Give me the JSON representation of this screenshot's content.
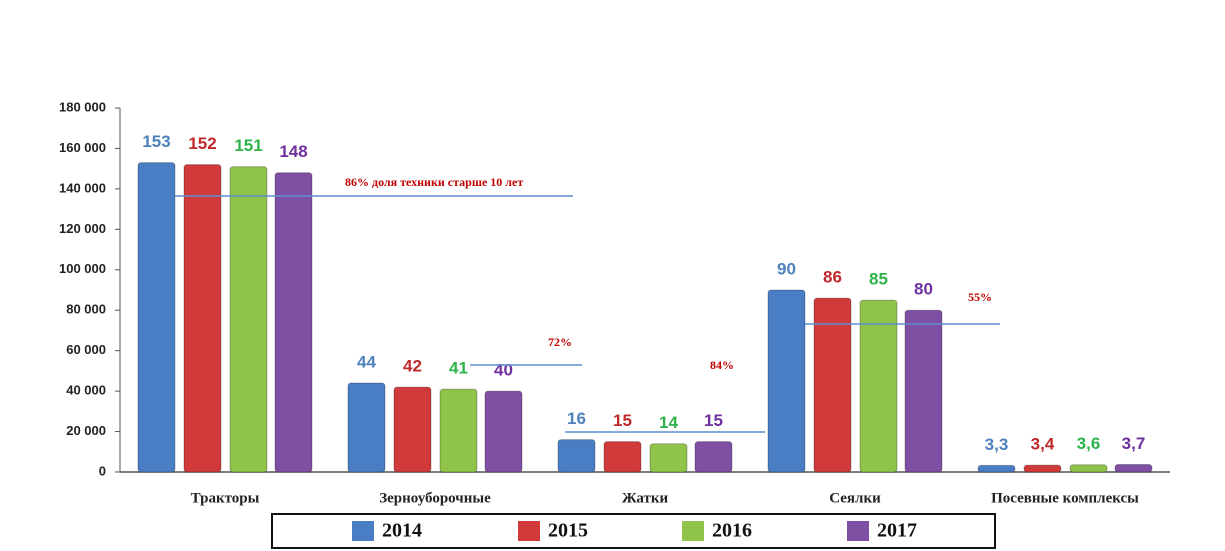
{
  "chart_data": {
    "type": "bar",
    "categories": [
      "Тракторы",
      "Зерноуборочные",
      "Жатки",
      "Сеялки",
      "Посевные комплексы"
    ],
    "series": [
      {
        "name": "2014",
        "color": "#4a7ec4",
        "label_color": "#4f81bd",
        "values": [
          153000,
          44000,
          16000,
          90000,
          3300
        ],
        "value_labels": [
          "153",
          "44",
          "16",
          "90",
          "3,3"
        ]
      },
      {
        "name": "2015",
        "color": "#d03a3a",
        "label_color": "#c0292b",
        "values": [
          152000,
          42000,
          15000,
          86000,
          3400
        ],
        "value_labels": [
          "152",
          "42",
          "15",
          "86",
          "3,4"
        ]
      },
      {
        "name": "2016",
        "color": "#8fc34a",
        "label_color": "#2db34a",
        "values": [
          151000,
          41000,
          14000,
          85000,
          3600
        ],
        "value_labels": [
          "151",
          "41",
          "14",
          "85",
          "3,6"
        ]
      },
      {
        "name": "2017",
        "color": "#7e4fa3",
        "label_color": "#7030a0",
        "values": [
          148000,
          40000,
          15000,
          80000,
          3700
        ],
        "value_labels": [
          "148",
          "40",
          "15",
          "80",
          "3,7"
        ]
      }
    ],
    "ylim": [
      0,
      180000
    ],
    "yticks": [
      0,
      {
        "value": 20000,
        "label": "20 000"
      },
      {
        "value": 40000,
        "label": "40 000"
      },
      {
        "value": 60000,
        "label": "60 000"
      },
      {
        "value": 80000,
        "label": "80 000"
      },
      {
        "value": 100000,
        "label": "100 000"
      },
      {
        "value": 120000,
        "label": "120 000"
      },
      {
        "value": 140000,
        "label": "140 000"
      },
      {
        "value": 160000,
        "label": "160 000"
      },
      {
        "value": 180000,
        "label": "180 000"
      }
    ],
    "annotations": [
      "86% доля техники старше 10 лет",
      "72%",
      "84%",
      "55%"
    ],
    "legend": "bottom"
  }
}
